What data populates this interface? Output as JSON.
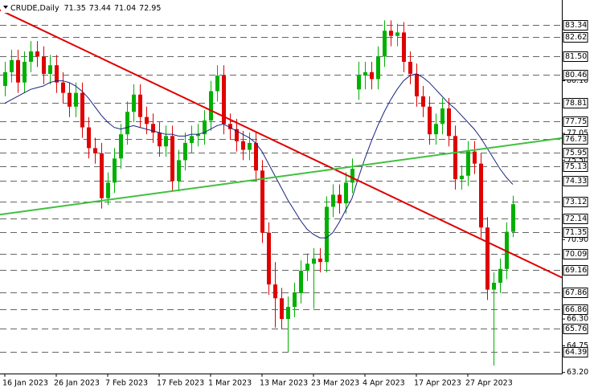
{
  "chart_data": {
    "type": "candlestick",
    "symbol": "CRUDE,Daily",
    "categories": [
      "16 Jan 2023",
      null,
      null,
      null,
      null,
      null,
      null,
      null,
      "26 Jan 2023",
      null,
      null,
      null,
      null,
      null,
      null,
      null,
      "7 Feb 2023",
      null,
      null,
      null,
      null,
      null,
      null,
      null,
      "17 Feb 2023",
      null,
      null,
      null,
      null,
      null,
      null,
      null,
      "1 Mar 2023",
      null,
      null,
      null,
      null,
      null,
      null,
      null,
      "13 Mar 2023",
      null,
      null,
      null,
      null,
      null,
      null,
      null,
      "23 Mar 2023",
      null,
      null,
      null,
      null,
      null,
      null,
      null,
      "4 Apr 2023",
      null,
      null,
      null,
      null,
      null,
      null,
      null,
      "17 Apr 2023",
      null,
      null,
      null,
      null,
      null,
      null,
      null,
      "27 Apr 2023",
      null,
      null,
      null,
      null,
      null,
      null,
      null
    ],
    "ohlc": [
      [
        79.8,
        81.2,
        79.2,
        80.6
      ],
      [
        80.6,
        81.9,
        80.0,
        81.3
      ],
      [
        81.3,
        81.9,
        79.4,
        80.0
      ],
      [
        80.0,
        81.8,
        79.4,
        81.2
      ],
      [
        81.2,
        82.4,
        80.6,
        81.8
      ],
      [
        81.8,
        82.4,
        80.9,
        81.5
      ],
      [
        81.5,
        82.1,
        79.9,
        80.5
      ],
      [
        80.5,
        81.6,
        79.9,
        81.0
      ],
      [
        81.0,
        81.6,
        79.4,
        80.0
      ],
      [
        80.0,
        80.6,
        78.8,
        79.4
      ],
      [
        79.4,
        80.0,
        78.0,
        78.6
      ],
      [
        78.6,
        80.0,
        78.0,
        79.4
      ],
      [
        79.4,
        80.0,
        76.8,
        77.4
      ],
      [
        77.4,
        78.0,
        75.6,
        76.2
      ],
      [
        76.2,
        76.8,
        75.3,
        75.9
      ],
      [
        75.9,
        76.5,
        72.7,
        73.3
      ],
      [
        73.3,
        74.8,
        72.9,
        74.2
      ],
      [
        74.2,
        76.2,
        73.6,
        75.6
      ],
      [
        75.6,
        77.6,
        75.0,
        77.0
      ],
      [
        77.0,
        78.9,
        76.4,
        78.3
      ],
      [
        78.3,
        79.9,
        77.7,
        79.3
      ],
      [
        79.3,
        79.9,
        77.4,
        78.0
      ],
      [
        78.0,
        78.6,
        77.0,
        77.6
      ],
      [
        77.6,
        78.2,
        76.5,
        77.1
      ],
      [
        77.1,
        77.7,
        75.7,
        76.3
      ],
      [
        76.3,
        77.5,
        75.7,
        76.9
      ],
      [
        76.9,
        77.5,
        73.7,
        74.3
      ],
      [
        74.3,
        76.1,
        73.7,
        75.5
      ],
      [
        75.5,
        77.1,
        74.9,
        76.5
      ],
      [
        76.5,
        77.5,
        75.9,
        76.9
      ],
      [
        76.9,
        77.6,
        76.3,
        77.0
      ],
      [
        77.0,
        78.4,
        76.4,
        77.8
      ],
      [
        77.8,
        80.1,
        77.2,
        79.5
      ],
      [
        79.5,
        81.0,
        78.9,
        80.4
      ],
      [
        80.4,
        81.0,
        77.0,
        77.6
      ],
      [
        77.6,
        78.2,
        76.7,
        77.3
      ],
      [
        77.3,
        77.9,
        76.0,
        76.6
      ],
      [
        76.6,
        77.2,
        75.5,
        76.1
      ],
      [
        76.1,
        77.1,
        75.5,
        76.5
      ],
      [
        76.5,
        77.1,
        74.3,
        74.9
      ],
      [
        74.9,
        75.5,
        70.7,
        71.3
      ],
      [
        71.3,
        71.9,
        67.7,
        68.3
      ],
      [
        68.3,
        69.6,
        65.8,
        67.5
      ],
      [
        67.5,
        68.1,
        65.7,
        66.3
      ],
      [
        66.3,
        67.6,
        64.39,
        67.0
      ],
      [
        67.0,
        68.4,
        66.4,
        67.8
      ],
      [
        67.8,
        69.7,
        67.2,
        69.1
      ],
      [
        69.1,
        70.1,
        68.5,
        69.5
      ],
      [
        69.5,
        70.4,
        66.9,
        69.8
      ],
      [
        69.8,
        70.4,
        69.0,
        69.6
      ],
      [
        69.6,
        73.4,
        69.0,
        72.8
      ],
      [
        72.8,
        74.1,
        72.2,
        73.5
      ],
      [
        73.5,
        74.1,
        72.4,
        73.0
      ],
      [
        73.0,
        74.8,
        72.4,
        74.2
      ],
      [
        74.2,
        75.6,
        73.6,
        75.0
      ],
      [
        79.6,
        81.2,
        79.0,
        80.4
      ],
      [
        80.4,
        81.2,
        79.6,
        80.6
      ],
      [
        80.6,
        81.2,
        79.6,
        80.2
      ],
      [
        80.2,
        82.1,
        79.6,
        81.5
      ],
      [
        81.5,
        83.6,
        80.9,
        83.0
      ],
      [
        83.0,
        83.6,
        82.1,
        82.7
      ],
      [
        82.7,
        83.4,
        82.1,
        82.9
      ],
      [
        82.9,
        83.5,
        80.6,
        81.2
      ],
      [
        81.2,
        81.8,
        79.9,
        80.5
      ],
      [
        80.5,
        81.1,
        78.6,
        79.2
      ],
      [
        79.2,
        79.8,
        78.0,
        78.6
      ],
      [
        78.6,
        79.2,
        76.4,
        77.0
      ],
      [
        77.0,
        78.2,
        76.4,
        77.6
      ],
      [
        77.6,
        79.1,
        77.0,
        78.5
      ],
      [
        78.5,
        79.1,
        76.3,
        76.9
      ],
      [
        76.9,
        77.5,
        73.8,
        74.4
      ],
      [
        74.4,
        75.2,
        73.8,
        74.6
      ],
      [
        74.6,
        76.6,
        74.0,
        76.0
      ],
      [
        76.0,
        76.6,
        74.7,
        75.3
      ],
      [
        75.3,
        75.9,
        71.0,
        71.6
      ],
      [
        71.6,
        72.2,
        67.4,
        68.0
      ],
      [
        68.0,
        69.0,
        63.6,
        68.4
      ],
      [
        68.4,
        69.8,
        67.8,
        69.2
      ],
      [
        69.2,
        71.9,
        68.6,
        71.35
      ],
      [
        71.35,
        73.44,
        71.04,
        72.95
      ]
    ],
    "up_color": "#00b000",
    "down_color": "#e00000",
    "ma": {
      "color": "#1a237e",
      "values": [
        78.8,
        79.0,
        79.2,
        79.4,
        79.6,
        79.7,
        79.8,
        80.0,
        80.1,
        80.1,
        80.0,
        79.8,
        79.5,
        79.1,
        78.6,
        78.1,
        77.7,
        77.4,
        77.3,
        77.4,
        77.5,
        77.4,
        77.3,
        77.2,
        77.1,
        77.0,
        77.0,
        76.9,
        76.9,
        77.0,
        77.0,
        77.1,
        77.3,
        77.5,
        77.6,
        77.4,
        77.2,
        77.0,
        76.8,
        76.5,
        76.0,
        75.3,
        74.6,
        73.9,
        73.2,
        72.6,
        72.0,
        71.5,
        71.2,
        71.0,
        71.0,
        71.3,
        71.9,
        72.6,
        73.3,
        74.5,
        75.6,
        76.6,
        77.5,
        78.3,
        79.0,
        79.6,
        80.1,
        80.4,
        80.5,
        80.3,
        80.0,
        79.6,
        79.2,
        78.8,
        78.5,
        78.1,
        77.7,
        77.3,
        76.8,
        76.2,
        75.6,
        75.0,
        74.5,
        74.1
      ]
    },
    "trendlines": [
      {
        "color": "#e00000",
        "x": [
          -0.75,
          86.625
        ],
        "y": [
          84.2,
          68.7
        ]
      },
      {
        "color": "#40c040",
        "x": [
          -0.75,
          86.625
        ],
        "y": [
          72.35,
          76.78
        ]
      }
    ],
    "levels": [
      83.34,
      82.62,
      81.5,
      80.46,
      78.81,
      77.75,
      76.73,
      75.95,
      75.13,
      74.33,
      73.12,
      72.14,
      71.35,
      70.09,
      69.16,
      67.86,
      66.86,
      65.76,
      64.39
    ],
    "level_labels": [
      "83.34",
      "82.62",
      "81.50",
      "80.46",
      "78.81",
      "77.75",
      "76.73",
      "75.95",
      "75.13",
      "74.33",
      "73.12",
      "72.14",
      "71.35",
      "70.09",
      "69.16",
      "67.86",
      "66.86",
      "65.76",
      "64.39"
    ],
    "yticks": [
      {
        "value": 80.1,
        "label": "80.10"
      },
      77.05,
      {
        "value": 75.5,
        "label": "75.50"
      },
      {
        "value": 70.9,
        "label": "70.90"
      },
      {
        "value": 66.3,
        "label": "66.30"
      },
      64.75,
      {
        "value": 63.2,
        "label": "63.20"
      }
    ],
    "ylim": [
      63.14,
      84.78
    ],
    "xlim": [
      -0.75,
      86.625
    ]
  }
}
